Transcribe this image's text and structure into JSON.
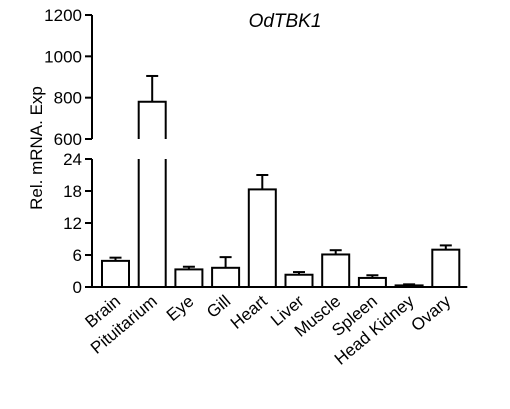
{
  "chart_data": {
    "type": "bar",
    "title": "OdTBK1",
    "xlabel": "",
    "ylabel": "Rel. mRNA. Exp",
    "categories": [
      "Brain",
      "Pituitarium",
      "Eye",
      "Gill",
      "Heart",
      "Liver",
      "Muscle",
      "Spleen",
      "Head Kidney",
      "Ovary"
    ],
    "series": [
      {
        "values": [
          4.9,
          780,
          3.3,
          3.6,
          18.3,
          2.3,
          6.1,
          1.7,
          0.3,
          7.0
        ],
        "errors": [
          0.6,
          125,
          0.5,
          2.0,
          2.7,
          0.5,
          0.8,
          0.5,
          0.2,
          0.8
        ]
      }
    ],
    "axis_break": {
      "lower_range": [
        0,
        24
      ],
      "upper_range": [
        600,
        1200
      ],
      "lower_ticks": [
        "0",
        "6",
        "12",
        "18",
        "24"
      ],
      "upper_ticks": [
        "600",
        "800",
        "1000",
        "1200"
      ]
    },
    "bar_fill": "#ffffff",
    "bar_stroke": "#000000",
    "grid": false,
    "legend": "none"
  }
}
